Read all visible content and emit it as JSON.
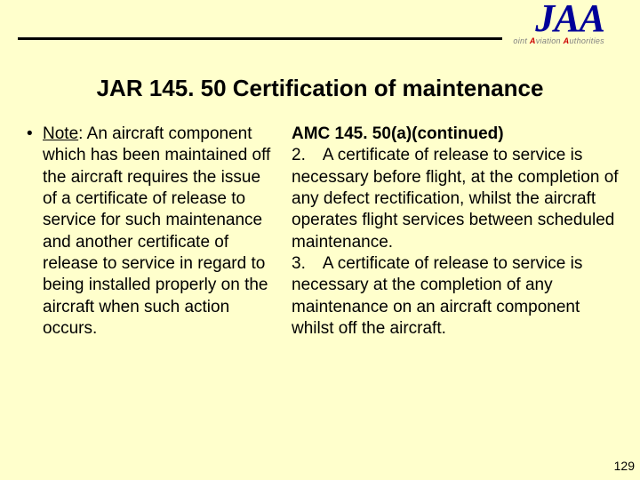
{
  "logo": {
    "main": "JAA",
    "sub_prefix": "oint ",
    "sub_a1": "A",
    "sub_mid1": "viation ",
    "sub_a2": "A",
    "sub_mid2": "uthorities"
  },
  "title": "JAR 145. 50 Certification of maintenance",
  "left": {
    "bullet": "•",
    "note_label": "Note",
    "note_body": ": An aircraft component which has been maintained off the aircraft requires the issue of a certificate of release to service for such maintenance and another certificate of release to service in regard to being installed properly on the aircraft when such action occurs."
  },
  "right": {
    "heading": "AMC 145. 50(a)(continued)",
    "para2": "2. A certificate of release to service is necessary before flight, at the completion of any defect rectification, whilst the aircraft operates flight services between scheduled maintenance.",
    "para3": "3. A certificate of release to service is necessary at the completion of any maintenance on an aircraft component whilst off the aircraft."
  },
  "page_number": "129",
  "colors": {
    "background": "#ffffcc",
    "logo": "#000099",
    "accent_red": "#cc0000",
    "accent_gray": "#808080"
  }
}
